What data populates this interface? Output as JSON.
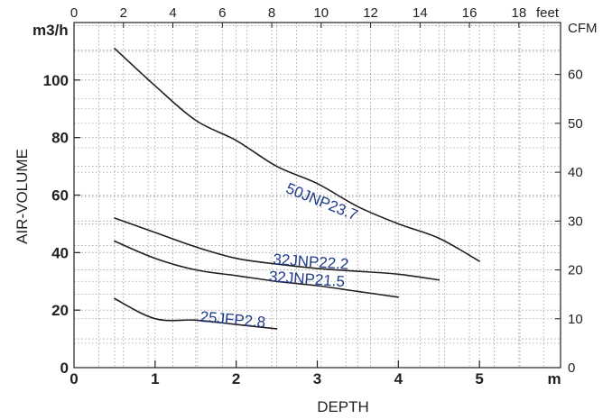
{
  "chart_data": {
    "type": "line",
    "xlabel": "DEPTH",
    "ylabel": "AIR-VOLUME",
    "x_unit": "m",
    "y_unit": "m3/h",
    "x2_unit": "feet",
    "y2_unit": "CFM",
    "xlim": [
      0,
      6
    ],
    "ylim": [
      0,
      120
    ],
    "x2lim": [
      0,
      19.685
    ],
    "y2lim": [
      0,
      70.63
    ],
    "x_ticks": [
      "0",
      "1",
      "2",
      "3",
      "4",
      "5"
    ],
    "y_ticks": [
      "0",
      "20",
      "40",
      "60",
      "80",
      "100"
    ],
    "x2_ticks": [
      "0",
      "2",
      "4",
      "6",
      "8",
      "10",
      "12",
      "14",
      "16",
      "18"
    ],
    "y2_ticks": [
      "0",
      "10",
      "20",
      "30",
      "40",
      "50",
      "60"
    ],
    "grid": true,
    "series": [
      {
        "name": "50JNP23.7",
        "color": "#231f20",
        "x": [
          0.5,
          1.0,
          1.5,
          2.0,
          2.5,
          3.0,
          3.5,
          4.0,
          4.5,
          5.0
        ],
        "y": [
          111,
          98,
          86,
          79,
          70,
          64,
          56,
          50,
          45,
          37
        ]
      },
      {
        "name": "32JNP22.2",
        "color": "#231f20",
        "x": [
          0.5,
          1.0,
          1.5,
          2.0,
          2.5,
          3.0,
          3.5,
          4.0,
          4.5
        ],
        "y": [
          52,
          47,
          42,
          38,
          36,
          34.5,
          33.5,
          32.5,
          30.5
        ]
      },
      {
        "name": "32JNP21.5",
        "color": "#231f20",
        "x": [
          0.5,
          1.0,
          1.5,
          2.0,
          2.5,
          3.0,
          3.5,
          4.0
        ],
        "y": [
          44,
          38,
          34,
          32,
          30,
          28.5,
          26.5,
          24.5
        ]
      },
      {
        "name": "25JFP2.8",
        "color": "#231f20",
        "x": [
          0.5,
          1.0,
          1.5,
          2.0,
          2.5
        ],
        "y": [
          24,
          17,
          16.5,
          15,
          13.5
        ]
      }
    ],
    "annotations": [
      {
        "text": "50JNP23.7",
        "x": 2.6,
        "y": 61,
        "rotate": 22
      },
      {
        "text": "32JNP22.2",
        "x": 2.45,
        "y": 36,
        "rotate": 4
      },
      {
        "text": "32JNP21.5",
        "x": 2.4,
        "y": 30,
        "rotate": 4
      },
      {
        "text": "25JFP2.8",
        "x": 1.55,
        "y": 16,
        "rotate": 5
      }
    ]
  }
}
